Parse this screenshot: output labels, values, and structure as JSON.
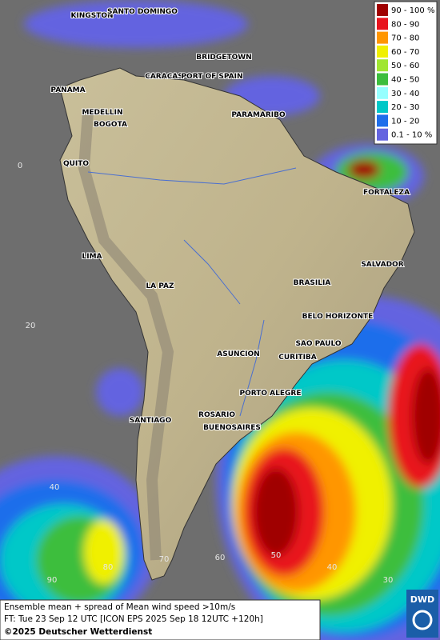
{
  "legend": [
    {
      "label": "90 - 100 %",
      "color": "#a00000"
    },
    {
      "label": "80 - 90",
      "color": "#e8141e"
    },
    {
      "label": "70 - 80",
      "color": "#ff9600"
    },
    {
      "label": "60 - 70",
      "color": "#f0f000"
    },
    {
      "label": "50 - 60",
      "color": "#a0e632"
    },
    {
      "label": "40 - 50",
      "color": "#3cbe3c"
    },
    {
      "label": "30 - 40",
      "color": "#96ffff"
    },
    {
      "label": "20 - 30",
      "color": "#00c8c8"
    },
    {
      "label": "10 - 20",
      "color": "#1e6eeb"
    },
    {
      "label": "0.1 - 10 %",
      "color": "#6464e0"
    }
  ],
  "cities": [
    "KINGSTON",
    "SANTO DOMINGO",
    "BRIDGETOWN",
    "CARACAS",
    "PORT OF SPAIN",
    "PANAMA",
    "MEDELLIN",
    "BOGOTA",
    "PARAMARIBO",
    "QUITO",
    "FORTALEZA",
    "LIMA",
    "SALVADOR",
    "BRASILIA",
    "LA PAZ",
    "BELO HORIZONTE",
    "SAO PAULO",
    "ASUNCION",
    "CURITIBA",
    "PORTO ALEGRE",
    "ROSARIO",
    "BUENOSAIRES",
    "SANTIAGO"
  ],
  "grid_labels": [
    "0",
    "20",
    "40",
    "90",
    "80",
    "70",
    "60",
    "50",
    "40",
    "30"
  ],
  "footer": {
    "line1": "Ensemble mean + spread of Mean wind speed >10m/s",
    "line2": "FT: Tue 23 Sep 12 UTC [ICON EPS 2025 Sep 18 12UTC +120h]",
    "copyright": "©2025 Deutscher Wetterdienst"
  },
  "logo": "DWD"
}
